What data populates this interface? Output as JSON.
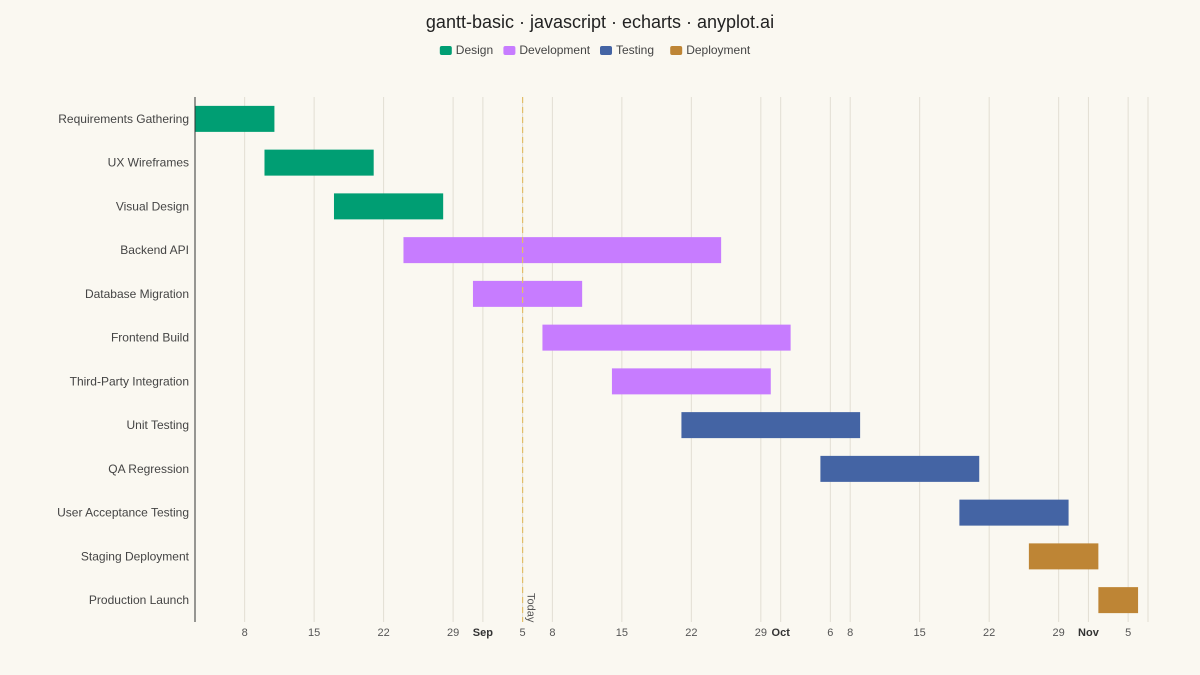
{
  "chart_data": {
    "type": "bar",
    "subtype": "gantt",
    "title": "gantt-basic · javascript · echarts · anyplot.ai",
    "legend_position": "top-center",
    "grid": {
      "vertical": true,
      "horizontal": false
    },
    "phases": [
      {
        "name": "Design",
        "color": "#009E73"
      },
      {
        "name": "Development",
        "color": "#C77CFF"
      },
      {
        "name": "Testing",
        "color": "#4464A4"
      },
      {
        "name": "Deployment",
        "color": "#BE8535"
      }
    ],
    "tasks": [
      {
        "name": "Requirements Gathering",
        "phase": "Design",
        "start": "2024-08-03",
        "end": "2024-08-11"
      },
      {
        "name": "UX Wireframes",
        "phase": "Design",
        "start": "2024-08-10",
        "end": "2024-08-21"
      },
      {
        "name": "Visual Design",
        "phase": "Design",
        "start": "2024-08-17",
        "end": "2024-08-28"
      },
      {
        "name": "Backend API",
        "phase": "Development",
        "start": "2024-08-24",
        "end": "2024-09-25"
      },
      {
        "name": "Database Migration",
        "phase": "Development",
        "start": "2024-08-31",
        "end": "2024-09-11"
      },
      {
        "name": "Frontend Build",
        "phase": "Development",
        "start": "2024-09-07",
        "end": "2024-10-02"
      },
      {
        "name": "Third-Party Integration",
        "phase": "Development",
        "start": "2024-09-14",
        "end": "2024-09-30"
      },
      {
        "name": "Unit Testing",
        "phase": "Testing",
        "start": "2024-09-21",
        "end": "2024-10-09"
      },
      {
        "name": "QA Regression",
        "phase": "Testing",
        "start": "2024-10-05",
        "end": "2024-10-21"
      },
      {
        "name": "User Acceptance Testing",
        "phase": "Testing",
        "start": "2024-10-19",
        "end": "2024-10-30"
      },
      {
        "name": "Staging Deployment",
        "phase": "Deployment",
        "start": "2024-10-26",
        "end": "2024-11-02"
      },
      {
        "name": "Production Launch",
        "phase": "Deployment",
        "start": "2024-11-02",
        "end": "2024-11-06"
      }
    ],
    "x_range": [
      "2024-08-03",
      "2024-11-07"
    ],
    "x_ticks": [
      {
        "date": "2024-08-08",
        "label": "8",
        "month": false
      },
      {
        "date": "2024-08-15",
        "label": "15",
        "month": false
      },
      {
        "date": "2024-08-22",
        "label": "22",
        "month": false
      },
      {
        "date": "2024-08-29",
        "label": "29",
        "month": false
      },
      {
        "date": "2024-09-01",
        "label": "Sep",
        "month": true
      },
      {
        "date": "2024-09-05",
        "label": "5",
        "month": false
      },
      {
        "date": "2024-09-08",
        "label": "8",
        "month": false
      },
      {
        "date": "2024-09-15",
        "label": "15",
        "month": false
      },
      {
        "date": "2024-09-22",
        "label": "22",
        "month": false
      },
      {
        "date": "2024-09-29",
        "label": "29",
        "month": false
      },
      {
        "date": "2024-10-01",
        "label": "Oct",
        "month": true
      },
      {
        "date": "2024-10-06",
        "label": "6",
        "month": false
      },
      {
        "date": "2024-10-08",
        "label": "8",
        "month": false
      },
      {
        "date": "2024-10-15",
        "label": "15",
        "month": false
      },
      {
        "date": "2024-10-22",
        "label": "22",
        "month": false
      },
      {
        "date": "2024-10-29",
        "label": "29",
        "month": false
      },
      {
        "date": "2024-11-01",
        "label": "Nov",
        "month": true
      },
      {
        "date": "2024-11-05",
        "label": "5",
        "month": false
      }
    ],
    "today": {
      "date": "2024-09-05",
      "label": "Today"
    }
  }
}
